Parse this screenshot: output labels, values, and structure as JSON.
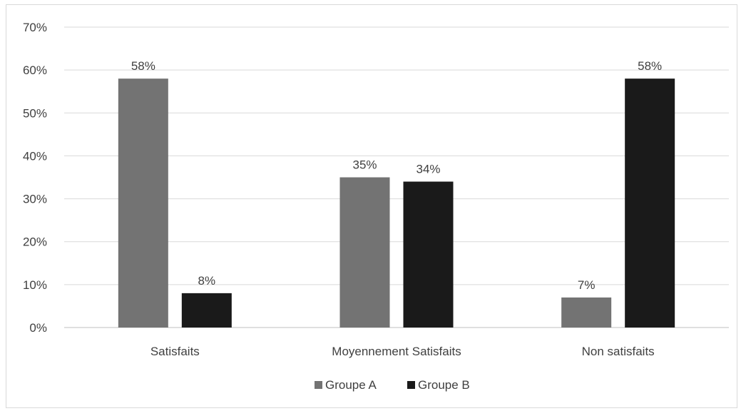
{
  "chart_data": {
    "type": "bar",
    "categories": [
      "Satisfaits",
      "Moyennement Satisfaits",
      "Non satisfaits"
    ],
    "series": [
      {
        "name": "Groupe A",
        "values": [
          58,
          35,
          7
        ],
        "color": "#737373"
      },
      {
        "name": "Groupe B",
        "values": [
          8,
          34,
          58
        ],
        "color": "#1a1a1a"
      }
    ],
    "data_labels": [
      [
        "58%",
        "35%",
        "7%"
      ],
      [
        "8%",
        "34%",
        "58%"
      ]
    ],
    "yticks": [
      "0%",
      "10%",
      "20%",
      "30%",
      "40%",
      "50%",
      "60%",
      "70%"
    ],
    "ylim": [
      0,
      70
    ],
    "grid": true,
    "legend_position": "bottom"
  }
}
